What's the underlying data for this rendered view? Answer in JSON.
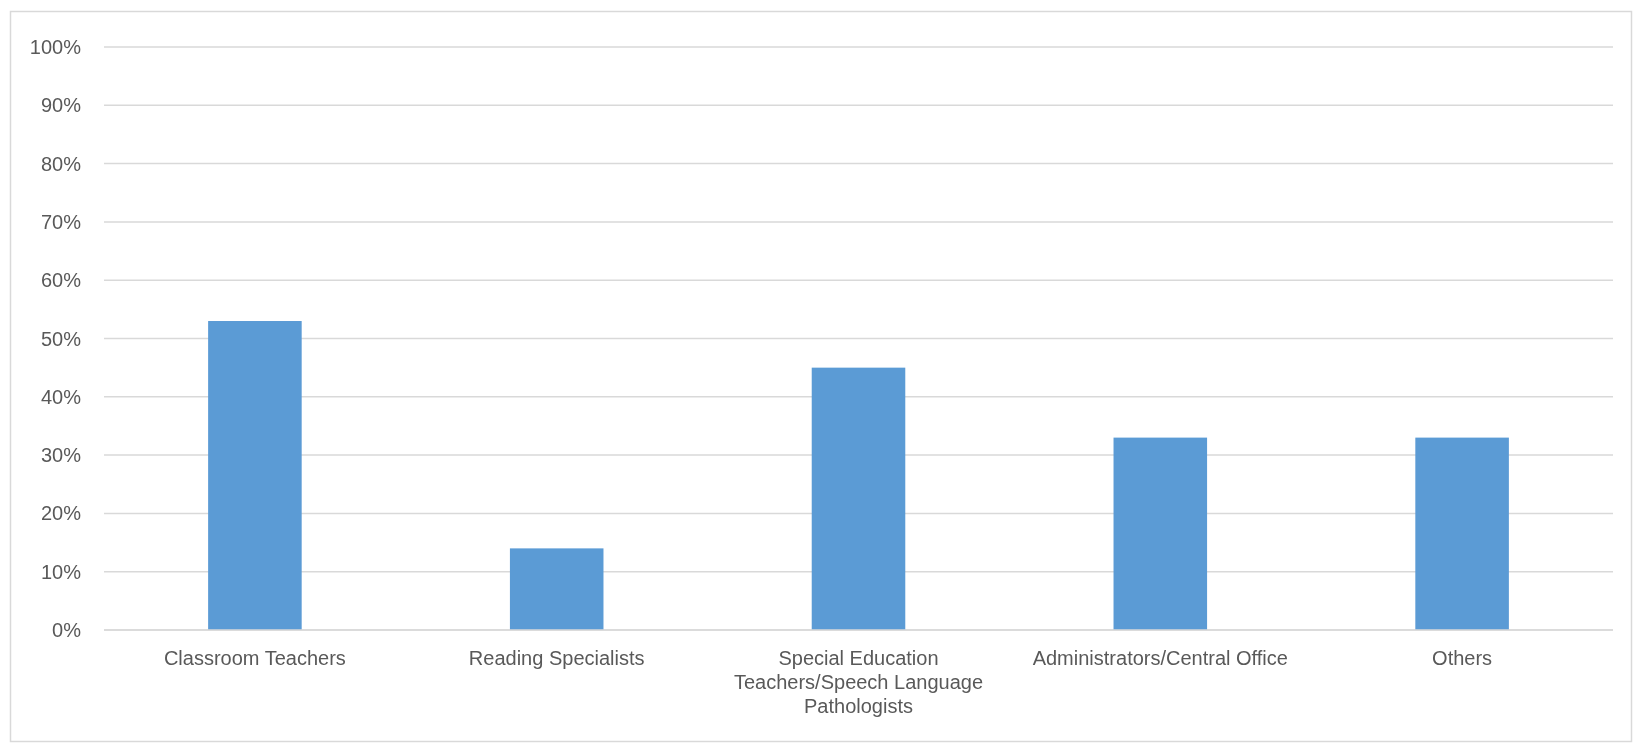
{
  "chart_data": {
    "type": "bar",
    "categories": [
      "Classroom Teachers",
      "Reading Specialists",
      "Special Education Teachers/Speech Language Pathologists",
      "Administrators/Central Office",
      "Others"
    ],
    "values": [
      53,
      14,
      45,
      33,
      33
    ],
    "color": "#5b9bd5",
    "ylim": [
      0,
      100
    ],
    "yticks": [
      {
        "value": 0,
        "label": "0%"
      },
      {
        "value": 10,
        "label": "10%"
      },
      {
        "value": 20,
        "label": "20%"
      },
      {
        "value": 30,
        "label": "30%"
      },
      {
        "value": 40,
        "label": "40%"
      },
      {
        "value": 50,
        "label": "50%"
      },
      {
        "value": 60,
        "label": "60%"
      },
      {
        "value": 70,
        "label": "70%"
      },
      {
        "value": 80,
        "label": "80%"
      },
      {
        "value": 90,
        "label": "90%"
      },
      {
        "value": 100,
        "label": "100%"
      }
    ],
    "grid": "y"
  }
}
